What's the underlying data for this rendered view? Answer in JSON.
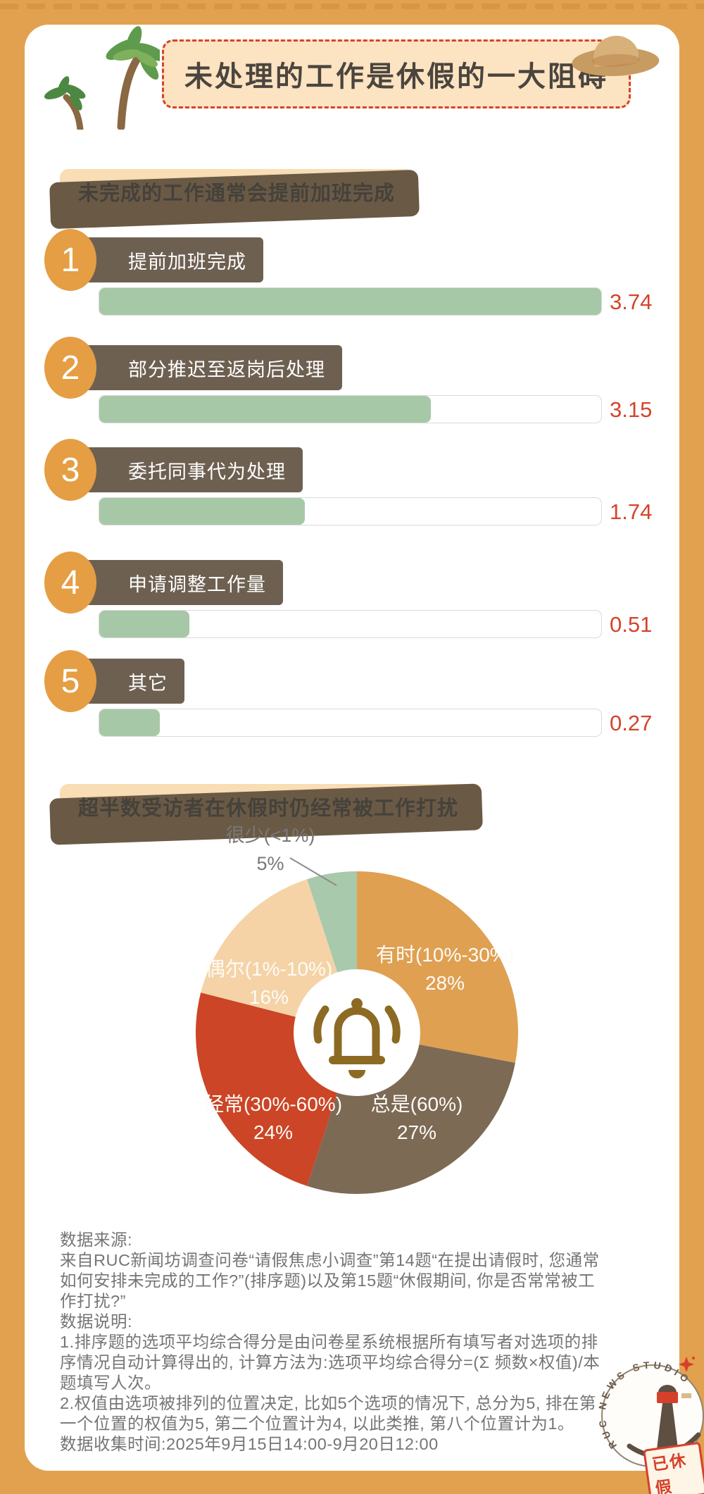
{
  "page": {
    "bg_color": "#E2A14F",
    "card_color": "#FFFFFF",
    "accent_red": "#D5432B"
  },
  "header": {
    "title": "未处理的工作是休假的一大阻碍"
  },
  "chart_data": [
    {
      "type": "bar",
      "orientation": "horizontal",
      "title": "未完成的工作通常会提前加班完成",
      "categories": [
        "提前加班完成",
        "部分推迟至返岗后处理",
        "委托同事代为处理",
        "申请调整工作量",
        "其它"
      ],
      "ranks": [
        "1",
        "2",
        "3",
        "4",
        "5"
      ],
      "values": [
        3.74,
        3.15,
        1.74,
        0.51,
        0.27
      ],
      "value_labels": [
        "3.74",
        "3.15",
        "1.74",
        "0.51",
        "0.27"
      ],
      "fill_percent": [
        100,
        66,
        41,
        18,
        12
      ],
      "bar_color": "#A7C8A6",
      "track_color": "#FFFFFF",
      "value_color": "#D5432B",
      "rank_circle_color": "#E59E44",
      "label_box_color": "#6E6051"
    },
    {
      "type": "pie",
      "subtype": "donut",
      "title": "超半数受访者在休假时仍经常被工作打扰",
      "labels": [
        "有时(10%-30%)",
        "总是(60%)",
        "经常(30%-60%)",
        "偶尔(1%-10%)",
        "很少(<1%)"
      ],
      "values": [
        28,
        27,
        24,
        16,
        5
      ],
      "value_labels": [
        "28%",
        "27%",
        "24%",
        "16%",
        "5%"
      ],
      "colors": [
        "#DFA052",
        "#7C6A55",
        "#CB4526",
        "#F5D3A7",
        "#A8C9AB"
      ],
      "start_angle": "top",
      "direction": "clockwise",
      "inner_radius_ratio": 0.39,
      "center_icon": "bell-icon",
      "center_icon_color": "#8D6A23"
    }
  ],
  "footer": {
    "lines": [
      "数据来源:",
      "来自RUC新闻坊调查问卷“请假焦虑小调查”第14题“在提出请假时, 您通常如何安排未完成的工作?”(排序题)以及第15题“休假期间, 你是否常常被工作打扰?”",
      "数据说明:",
      "1.排序题的选项平均综合得分是由问卷星系统根据所有填写者对选项的排序情况自动计算得出的, 计算方法为:选项平均综合得分=(Σ 频数×权值)/本题填写人次。",
      "2.权值由选项被排列的位置决定, 比如5个选项的情况下, 总分为5, 排在第一个位置的权值为5, 第二个位置计为4, 以此类推, 第八个位置计为1。",
      "数据收集时间:2025年9月15日14:00-9月20日12:00"
    ]
  },
  "badge": {
    "studio_text": "RUC NEWS STUDIO",
    "stamp_text": "已休假"
  }
}
